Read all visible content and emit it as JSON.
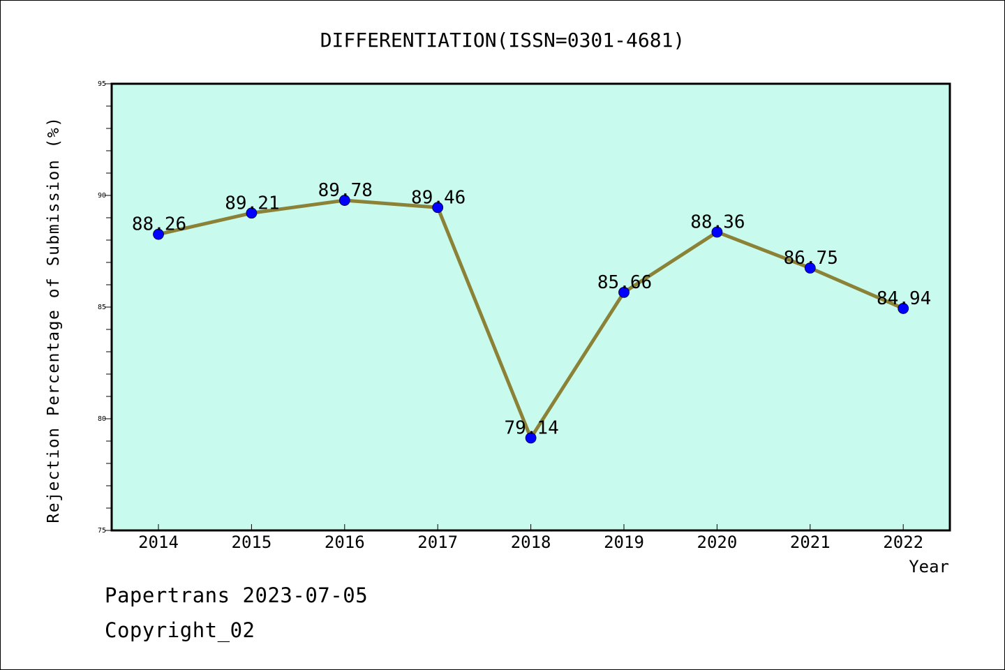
{
  "chart_data": {
    "type": "line",
    "title": "DIFFERENTIATION(ISSN=0301-4681)",
    "xlabel": "Year",
    "ylabel": "Rejection Percentage of Submission (%)",
    "categories": [
      "2014",
      "2015",
      "2016",
      "2017",
      "2018",
      "2019",
      "2020",
      "2021",
      "2022"
    ],
    "values": [
      88.26,
      89.21,
      89.78,
      89.46,
      79.14,
      85.66,
      88.36,
      86.75,
      84.94
    ],
    "data_labels": [
      "88.26",
      "89.21",
      "89.78",
      "89.46",
      "79.14",
      "85.66",
      "88.36",
      "86.75",
      "84.94"
    ],
    "ylim": [
      75,
      95
    ],
    "y_ticks": [
      75,
      80,
      85,
      90,
      95
    ],
    "y_tick_labels": [
      "75",
      "80",
      "85",
      "90",
      "95"
    ],
    "grid": false,
    "colors": {
      "plot_background": "#c8fbee",
      "line": "#8b8238",
      "marker": "#0000ff"
    }
  },
  "footer": {
    "line1": "Papertrans 2023-07-05",
    "line2": "Copyright_02"
  }
}
